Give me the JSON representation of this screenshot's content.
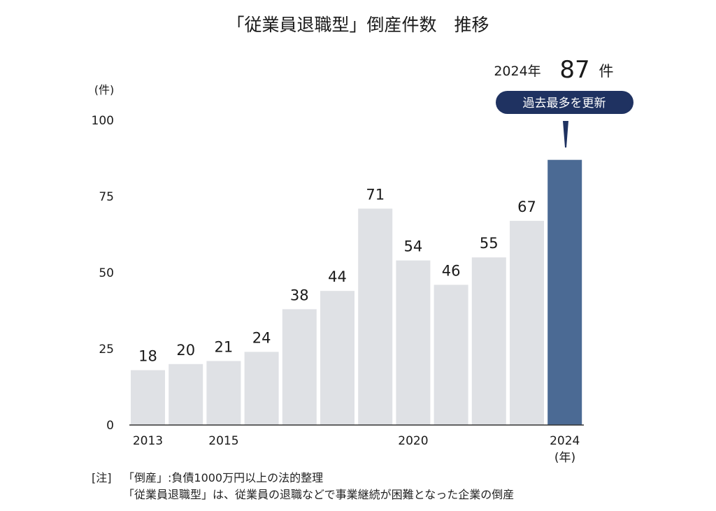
{
  "chart_data": {
    "type": "bar",
    "title": "「従業員退職型」倒産件数　推移",
    "categories": [
      "2013",
      "2014",
      "2015",
      "2016",
      "2017",
      "2018",
      "2019",
      "2020",
      "2021",
      "2022",
      "2023",
      "2024"
    ],
    "values": [
      18,
      20,
      21,
      24,
      38,
      44,
      71,
      54,
      46,
      55,
      67,
      87
    ],
    "x_tick_labels": [
      "2013",
      "2015",
      "2020",
      "2024"
    ],
    "xlabel": "(年)",
    "ylabel": "(件)",
    "ylim": [
      0,
      100
    ],
    "y_ticks": [
      0,
      25,
      50,
      75,
      100
    ],
    "grid": false,
    "highlight_category": "2024",
    "colors": {
      "bar": "#dfe1e5",
      "highlight": "#4b6a94",
      "callout": "#1f3261"
    },
    "annotation": {
      "year": "2024年",
      "value": "87",
      "unit": "件",
      "badge": "過去最多を更新"
    }
  },
  "notes": {
    "label": "[注]",
    "line1": "「倒産」:負債1000万円以上の法的整理",
    "line2": "「従業員退職型」は、従業員の退職などで事業継続が困難となった企業の倒産"
  }
}
